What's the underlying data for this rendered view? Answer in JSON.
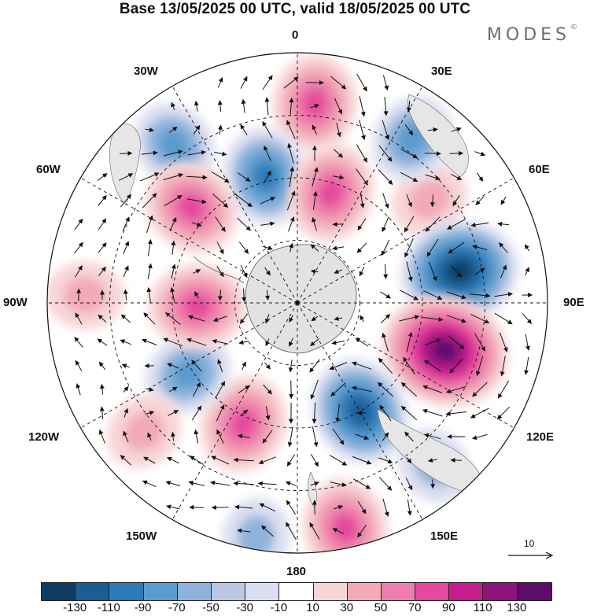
{
  "title": "Base 13/05/2025 00 UTC, valid 18/05/2025 00 UTC",
  "brand": {
    "name": "MODES",
    "mark": "©"
  },
  "map": {
    "projection": "south polar stereographic",
    "longitude_labels": {
      "lon_0": "0",
      "lon_30e": "30E",
      "lon_60e": "60E",
      "lon_90e": "90E",
      "lon_120e": "120E",
      "lon_150e": "150E",
      "lon_180": "180",
      "lon_150w": "150W",
      "lon_120w": "120W",
      "lon_90w": "90W",
      "lon_60w": "60W",
      "lon_30w": "30W"
    },
    "reference_vector": {
      "label": "10"
    },
    "anomaly_centers": [
      {
        "sign": "positive",
        "lon_deg": 5,
        "colatitude": 0.8,
        "level": 70
      },
      {
        "sign": "negative",
        "lon_deg": -38,
        "colatitude": 0.8,
        "level": -50
      },
      {
        "sign": "negative",
        "lon_deg": -14,
        "colatitude": 0.52,
        "level": -70
      },
      {
        "sign": "positive",
        "lon_deg": -48,
        "colatitude": 0.57,
        "level": 70
      },
      {
        "sign": "positive",
        "lon_deg": 17,
        "colatitude": 0.46,
        "level": 70
      },
      {
        "sign": "positive",
        "lon_deg": 52,
        "colatitude": 0.67,
        "level": 30
      },
      {
        "sign": "negative",
        "lon_deg": 35,
        "colatitude": 0.8,
        "level": -50
      },
      {
        "sign": "negative",
        "lon_deg": 79,
        "colatitude": 0.66,
        "level": -110
      },
      {
        "sign": "positive",
        "lon_deg": 108,
        "colatitude": 0.62,
        "level": 130
      },
      {
        "sign": "negative",
        "lon_deg": 150,
        "colatitude": 0.5,
        "level": -90
      },
      {
        "sign": "positive",
        "lon_deg": -156,
        "colatitude": 0.53,
        "level": 70
      },
      {
        "sign": "negative",
        "lon_deg": -123,
        "colatitude": 0.52,
        "level": -50
      },
      {
        "sign": "positive",
        "lon_deg": -92,
        "colatitude": 0.4,
        "level": 70
      },
      {
        "sign": "positive",
        "lon_deg": 168,
        "colatitude": 0.92,
        "level": 70
      },
      {
        "sign": "negative",
        "lon_deg": -170,
        "colatitude": 0.95,
        "level": -30
      },
      {
        "sign": "negative",
        "lon_deg": 140,
        "colatitude": 0.85,
        "level": -30
      },
      {
        "sign": "positive",
        "lon_deg": -88,
        "colatitude": 0.85,
        "level": 30
      },
      {
        "sign": "positive",
        "lon_deg": -130,
        "colatitude": 0.8,
        "level": 30
      }
    ]
  },
  "colorbar": {
    "colors": [
      "#0e3c61",
      "#1b5d93",
      "#2d7ab8",
      "#5a9ccf",
      "#8fb3dc",
      "#bac8e4",
      "#dcdff0",
      "#ffffff",
      "#f8d5d7",
      "#f2aab8",
      "#ee7fac",
      "#e5489c",
      "#c81e8d",
      "#8f137d",
      "#5c0d6b"
    ],
    "tick_labels": [
      "-130",
      "-110",
      "-90",
      "-70",
      "-50",
      "-30",
      "-10",
      "10",
      "30",
      "50",
      "70",
      "90",
      "110",
      "130"
    ]
  }
}
